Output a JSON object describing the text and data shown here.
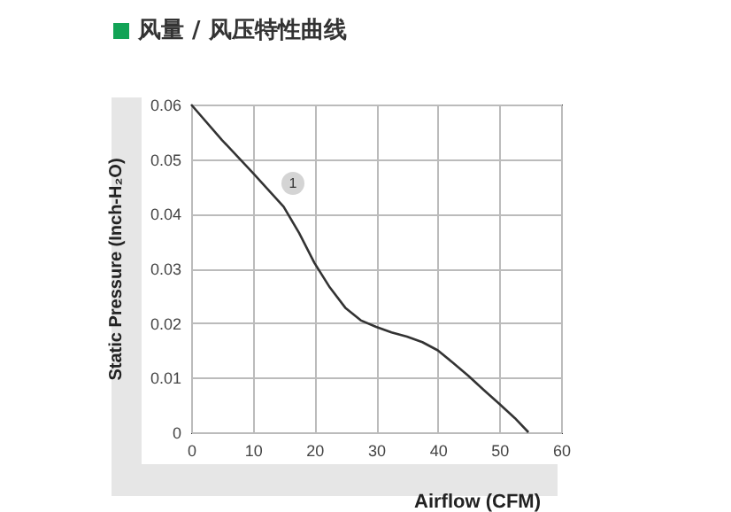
{
  "chart_data": {
    "type": "line",
    "title": "风量 / 风压特性曲线",
    "xlabel": "Airflow (CFM)",
    "ylabel": "Static Pressure (Inch-H₂O)",
    "x": [
      0,
      5,
      10,
      15,
      17.5,
      20,
      22.5,
      25,
      27.5,
      30,
      32.5,
      35,
      37.5,
      40,
      42.5,
      45,
      47.5,
      50,
      52.5,
      54.7
    ],
    "series": [
      {
        "color": "#333333",
        "values": [
          0.06,
          0.0535,
          0.0475,
          0.0413,
          0.0365,
          0.031,
          0.0265,
          0.0228,
          0.0205,
          0.0193,
          0.0183,
          0.0175,
          0.0165,
          0.015,
          0.0127,
          0.0103,
          0.0077,
          0.0052,
          0.0026,
          0
        ]
      }
    ],
    "xlim": [
      0,
      60
    ],
    "xticks": [
      0,
      10,
      20,
      30,
      40,
      50,
      60
    ],
    "ylim": [
      0,
      0.06
    ],
    "yticks": [
      0,
      0.01,
      0.02,
      0.03,
      0.04,
      0.05,
      0.06
    ],
    "grid": true,
    "annotations": [
      "1"
    ]
  }
}
